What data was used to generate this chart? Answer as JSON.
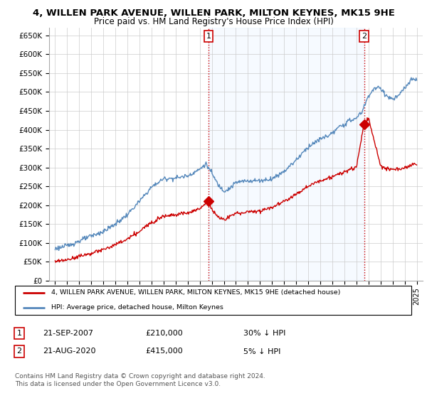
{
  "title": "4, WILLEN PARK AVENUE, WILLEN PARK, MILTON KEYNES, MK15 9HE",
  "subtitle": "Price paid vs. HM Land Registry's House Price Index (HPI)",
  "ylim": [
    0,
    670000
  ],
  "yticks": [
    0,
    50000,
    100000,
    150000,
    200000,
    250000,
    300000,
    350000,
    400000,
    450000,
    500000,
    550000,
    600000,
    650000
  ],
  "legend_red": "4, WILLEN PARK AVENUE, WILLEN PARK, MILTON KEYNES, MK15 9HE (detached house)",
  "legend_blue": "HPI: Average price, detached house, Milton Keynes",
  "footnote": "Contains HM Land Registry data © Crown copyright and database right 2024.\nThis data is licensed under the Open Government Licence v3.0.",
  "sale1_date": "21-SEP-2007",
  "sale1_price": "£210,000",
  "sale1_hpi": "30% ↓ HPI",
  "sale1_year": 2007.72,
  "sale1_value": 210000,
  "sale2_date": "21-AUG-2020",
  "sale2_price": "£415,000",
  "sale2_hpi": "5% ↓ HPI",
  "sale2_year": 2020.63,
  "sale2_value": 415000,
  "red_color": "#cc0000",
  "blue_color": "#5588bb",
  "bg_color": "#ffffff",
  "fill_color": "#ddeeff",
  "grid_color": "#cccccc",
  "hpi_keypoints_years": [
    1995,
    1996,
    1997,
    1998,
    1999,
    2000,
    2001,
    2002,
    2003,
    2004,
    2005,
    2006,
    2007,
    2007.5,
    2008,
    2008.5,
    2009,
    2009.5,
    2010,
    2011,
    2012,
    2013,
    2014,
    2015,
    2016,
    2017,
    2018,
    2018.5,
    2019,
    2019.5,
    2020,
    2020.5,
    2021,
    2021.5,
    2022,
    2022.5,
    2023,
    2023.5,
    2024,
    2024.5,
    2025
  ],
  "hpi_keypoints_vals": [
    85000,
    92000,
    105000,
    118000,
    130000,
    150000,
    175000,
    210000,
    248000,
    270000,
    272000,
    278000,
    295000,
    310000,
    285000,
    255000,
    238000,
    245000,
    260000,
    265000,
    265000,
    270000,
    290000,
    320000,
    355000,
    375000,
    390000,
    405000,
    415000,
    425000,
    430000,
    450000,
    490000,
    510000,
    510000,
    490000,
    480000,
    490000,
    510000,
    530000,
    535000
  ],
  "red_keypoints_years": [
    1995,
    1996,
    1997,
    1998,
    1999,
    2000,
    2001,
    2002,
    2003,
    2004,
    2005,
    2006,
    2007,
    2007.3,
    2007.72,
    2008,
    2008.5,
    2009,
    2009.5,
    2010,
    2011,
    2012,
    2013,
    2014,
    2015,
    2016,
    2017,
    2018,
    2019,
    2019.5,
    2020,
    2020.63,
    2021,
    2022,
    2022.5,
    2023,
    2023.5,
    2024,
    2024.5,
    2025
  ],
  "red_keypoints_vals": [
    50000,
    55000,
    65000,
    72000,
    82000,
    95000,
    110000,
    130000,
    155000,
    172000,
    175000,
    180000,
    190000,
    200000,
    210000,
    190000,
    168000,
    162000,
    170000,
    178000,
    182000,
    185000,
    195000,
    210000,
    230000,
    250000,
    265000,
    275000,
    288000,
    295000,
    300000,
    415000,
    430000,
    305000,
    295000,
    295000,
    295000,
    300000,
    305000,
    310000
  ]
}
